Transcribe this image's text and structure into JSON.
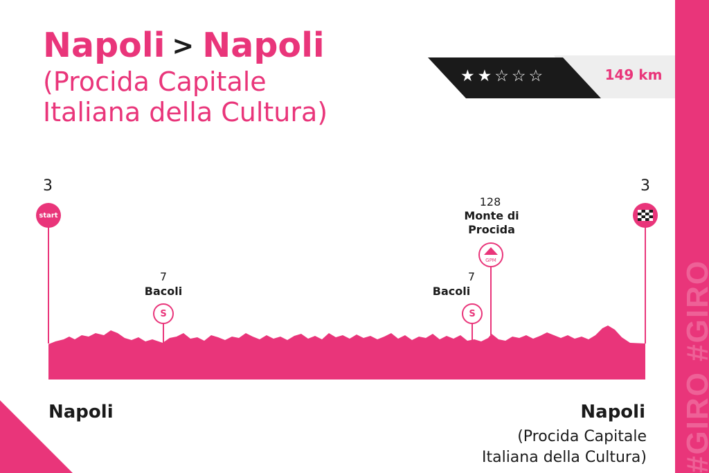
{
  "title": {
    "from": "Napoli",
    "arrow": ">",
    "to": "Napoli",
    "sub_line1": "(Procida Capitale",
    "sub_line2": "Italiana della Cultura)"
  },
  "difficulty": {
    "stars_text": "★★☆☆☆",
    "filled": 2,
    "total": 5
  },
  "distance": "149 km",
  "sidebar_watermark": "#GIRO #GIRO",
  "start": {
    "altitude": "3",
    "badge": "start",
    "name": "Napoli"
  },
  "finish": {
    "altitude": "3",
    "badge_icon": "checkered-flag-icon",
    "name": "Napoli",
    "sub_line1": "(Procida Capitale",
    "sub_line2": "Italiana della Cultura)"
  },
  "waypoints": [
    {
      "altitude": "7",
      "name": "Bacoli",
      "badge": "S",
      "type": "sprint"
    },
    {
      "altitude": "7",
      "name": "Bacoli",
      "badge": "S",
      "type": "sprint"
    },
    {
      "altitude": "128",
      "name_line1": "Monte di",
      "name_line2": "Procida",
      "badge": "GPM",
      "type": "climb"
    }
  ],
  "colors": {
    "accent": "#e9357a",
    "dark": "#1a1a1a",
    "light": "#eeeeee"
  }
}
